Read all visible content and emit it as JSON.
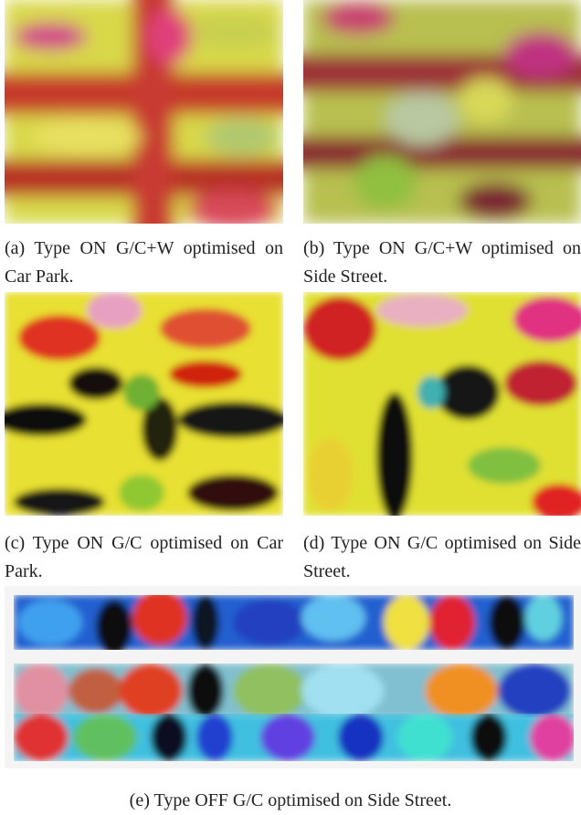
{
  "captions": [
    "(a) Type ON G/C+W optimised on Car Park.",
    "(b) Type ON G/C+W optimised on Side Street.",
    "(c) Type ON G/C optimised on Car Park.",
    "(d) Type ON G/C optimised on Side Street.",
    "(e) Type OFF G/C optimised on Side Street."
  ]
}
